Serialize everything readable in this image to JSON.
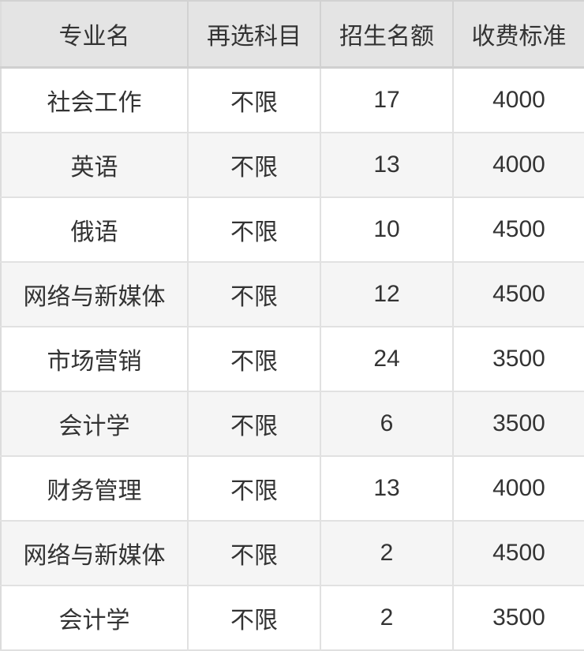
{
  "table": {
    "headers": [
      {
        "label": "专业名"
      },
      {
        "label": "再选科目"
      },
      {
        "label": "招生名额"
      },
      {
        "label": "收费标准"
      }
    ],
    "rows": [
      {
        "major": "社会工作",
        "subject": "不限",
        "quota": "17",
        "fee": "4000"
      },
      {
        "major": "英语",
        "subject": "不限",
        "quota": "13",
        "fee": "4000"
      },
      {
        "major": "俄语",
        "subject": "不限",
        "quota": "10",
        "fee": "4500"
      },
      {
        "major": "网络与新媒体",
        "subject": "不限",
        "quota": "12",
        "fee": "4500"
      },
      {
        "major": "市场营销",
        "subject": "不限",
        "quota": "24",
        "fee": "3500"
      },
      {
        "major": "会计学",
        "subject": "不限",
        "quota": "6",
        "fee": "3500"
      },
      {
        "major": "财务管理",
        "subject": "不限",
        "quota": "13",
        "fee": "4000"
      },
      {
        "major": "网络与新媒体",
        "subject": "不限",
        "quota": "2",
        "fee": "4500"
      },
      {
        "major": "会计学",
        "subject": "不限",
        "quota": "2",
        "fee": "3500"
      }
    ],
    "colors": {
      "header_bg": "#e4e4e4",
      "row_bg": "#ffffff",
      "row_alt_bg": "#f5f5f5",
      "grid_line": "#e1e1e1",
      "header_line": "#d0d0d0",
      "text": "#333333"
    }
  }
}
